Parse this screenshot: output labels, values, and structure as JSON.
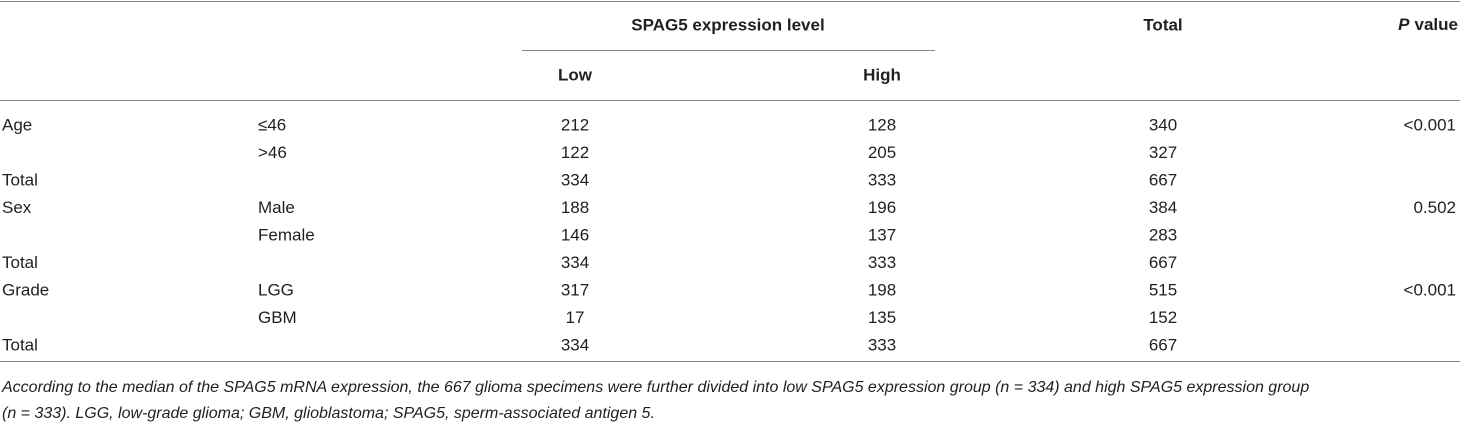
{
  "table": {
    "header": {
      "group": "SPAG5 expression level",
      "low": "Low",
      "high": "High",
      "total": "Total",
      "p_value": [
        "P",
        "value"
      ]
    },
    "rows": [
      [
        "Age",
        "≤46",
        212,
        128,
        340,
        "<0.001"
      ],
      [
        null,
        ">46",
        122,
        205,
        327,
        null
      ],
      [
        "Total",
        null,
        334,
        333,
        667,
        null
      ],
      [
        "Sex",
        "Male",
        188,
        196,
        384,
        0.502
      ],
      [
        null,
        "Female",
        146,
        137,
        283,
        null
      ],
      [
        "Total",
        null,
        334,
        333,
        667,
        null
      ],
      [
        "Grade",
        "LGG",
        317,
        198,
        515,
        "<0.001"
      ],
      [
        null,
        "GBM",
        17,
        135,
        152,
        null
      ],
      [
        "Total",
        null,
        334,
        333,
        667,
        null
      ]
    ],
    "footnote": [
      "According to the median of the SPAG5 mRNA expression, the 667 glioma specimens were further divided into low SPAG5 expression group (n = 334) and high SPAG5 expression group",
      "(n = 333). LGG, low-grade glioma; GBM, glioblastoma; SPAG5, sperm-associated antigen 5."
    ]
  }
}
